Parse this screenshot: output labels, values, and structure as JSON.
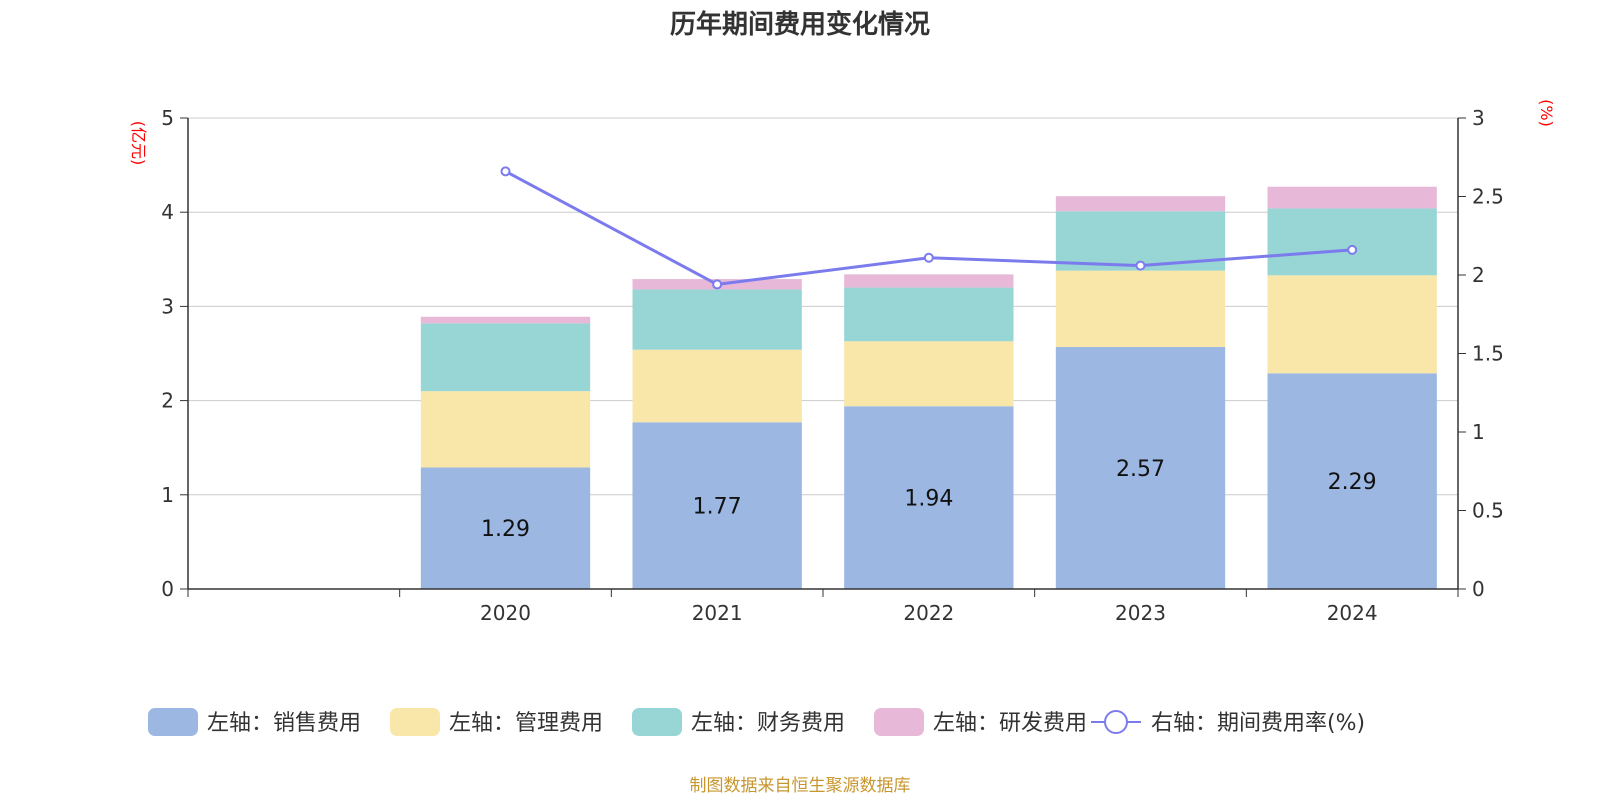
{
  "chart_data": {
    "type": "bar",
    "title": "历年期间费用变化情况",
    "categories": [
      "",
      "2020",
      "2021",
      "2022",
      "2023",
      "2024"
    ],
    "left_axis": {
      "unit": "(亿元)",
      "ylim": [
        0,
        5
      ],
      "ticks": [
        "0",
        "1",
        "2",
        "3",
        "4",
        "5"
      ]
    },
    "right_axis": {
      "unit": "(%)",
      "ylim": [
        0,
        3
      ],
      "ticks": [
        "0",
        "0.5",
        "1",
        "1.5",
        "2",
        "2.5",
        "3"
      ]
    },
    "grid": true,
    "stacked": true,
    "series": [
      {
        "name": "左轴：销售费用",
        "type": "bar",
        "axis": "left",
        "color": "#9bb7e2",
        "values": [
          null,
          1.29,
          1.77,
          1.94,
          2.57,
          2.29
        ],
        "labels": [
          "",
          "1.29",
          "1.77",
          "1.94",
          "2.57",
          "2.29"
        ]
      },
      {
        "name": "左轴：管理费用",
        "type": "bar",
        "axis": "left",
        "color": "#f8e7a8",
        "values": [
          null,
          0.81,
          0.77,
          0.69,
          0.81,
          1.04
        ]
      },
      {
        "name": "左轴：财务费用",
        "type": "bar",
        "axis": "left",
        "color": "#98d5d5",
        "values": [
          null,
          0.72,
          0.64,
          0.57,
          0.63,
          0.71
        ]
      },
      {
        "name": "左轴：研发费用",
        "type": "bar",
        "axis": "left",
        "color": "#e8b8d8",
        "values": [
          null,
          0.07,
          0.11,
          0.14,
          0.16,
          0.23
        ]
      },
      {
        "name": "右轴：期间费用率(%)",
        "type": "line",
        "axis": "right",
        "color": "#7b7bee",
        "values": [
          null,
          2.66,
          1.94,
          2.11,
          2.06,
          2.16
        ]
      }
    ],
    "legend_position": "bottom",
    "source": "制图数据来自恒生聚源数据库"
  }
}
